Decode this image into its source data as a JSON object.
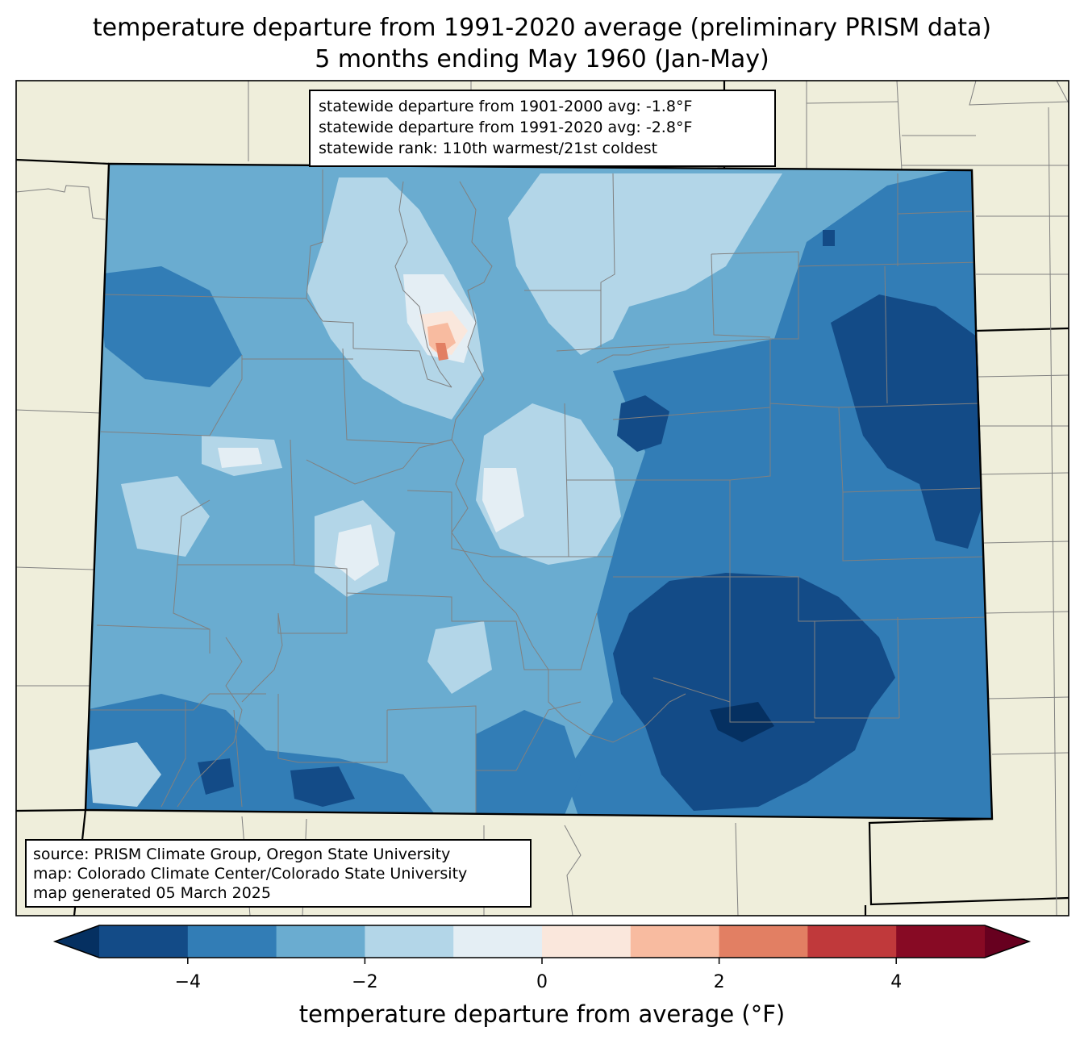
{
  "title": {
    "line1": "temperature departure from 1991-2020 average (preliminary PRISM data)",
    "line2": "5 months ending May 1960 (Jan-May)"
  },
  "stats_box": {
    "line1": "statewide departure from 1901-2000 avg: -1.8°F",
    "line2": "statewide departure from 1991-2020 avg: -2.8°F",
    "line3": "statewide rank: 110th warmest/21st coldest"
  },
  "credit_box": {
    "line1": "source: PRISM Climate Group, Oregon State University",
    "line2": "map: Colorado Climate Center/Colorado State University",
    "line3": "map generated 05 March 2025"
  },
  "colorbar": {
    "label": "temperature departure from average (°F)",
    "ticks": [
      "−4",
      "−2",
      "0",
      "2",
      "4"
    ],
    "tick_values": [
      -4,
      -2,
      0,
      2,
      4
    ],
    "range": [
      -5,
      5
    ],
    "colors": [
      "#053061",
      "#134b87",
      "#327db6",
      "#6aacd0",
      "#b3d6e8",
      "#e4eef4",
      "#fae7dc",
      "#f8bba0",
      "#e27f63",
      "#c0393b",
      "#870a24",
      "#67001f"
    ],
    "extend": "both"
  },
  "map": {
    "land_color": "#efeedb",
    "county_line_color": "#808080",
    "state_line_color": "#000000"
  }
}
